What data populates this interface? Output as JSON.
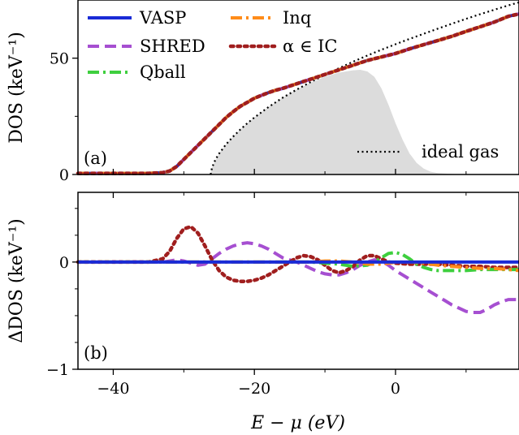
{
  "colors": {
    "VASP": "#1a2bd6",
    "SHRED": "#a64fd1",
    "Qball": "#3ecf3e",
    "Inq": "#ff8c1a",
    "alphaIC": "#a01e1e",
    "ideal": "#000000",
    "shade": "#dcdcdc"
  },
  "chart_data": [
    {
      "type": "line",
      "panel_tag": "(a)",
      "ylabel": "DOS (keV⁻¹)",
      "xlim": [
        -45,
        17.5
      ],
      "ylim": [
        0,
        75
      ],
      "xticks": [
        -40,
        -20,
        0
      ],
      "yticks": [
        0,
        50
      ],
      "ytick_labels": [
        "0",
        "50"
      ],
      "legend": {
        "placement": "top-left",
        "entries": [
          {
            "key": "VASP",
            "label": "VASP",
            "style": "solid"
          },
          {
            "key": "SHRED",
            "label": "SHRED",
            "style": "dashed"
          },
          {
            "key": "Qball",
            "label": "Qball",
            "style": "dashdot"
          },
          {
            "key": "Inq",
            "label": "Inq",
            "style": "dashdot"
          },
          {
            "key": "alphaIC",
            "label": "α ∈ IC",
            "style": "dotted"
          }
        ]
      },
      "ideal_legend": {
        "label": "ideal gas",
        "placement": "bottom-right"
      },
      "series_x": [
        -45,
        -40,
        -35,
        -33,
        -32,
        -31,
        -30,
        -29,
        -28,
        -27,
        -26,
        -25,
        -24,
        -23,
        -22,
        -21,
        -20,
        -19,
        -18,
        -17,
        -16,
        -15,
        -14,
        -13,
        -12,
        -11,
        -10,
        -8,
        -6,
        -4,
        -2,
        0,
        2,
        4,
        6,
        8,
        10,
        12,
        14,
        16,
        17.5
      ],
      "main_y": [
        0.5,
        0.5,
        0.5,
        0.8,
        1.5,
        3.5,
        6.5,
        9.5,
        12.5,
        15.5,
        18.5,
        21.5,
        24.5,
        27,
        29.3,
        31,
        32.8,
        34,
        35.2,
        36.2,
        37,
        38,
        39,
        40,
        41,
        42,
        43,
        45,
        47,
        49,
        50.5,
        52,
        54,
        55.8,
        57.6,
        59.4,
        61.5,
        63.5,
        65.5,
        68,
        69
      ],
      "ideal_x": [
        -26.2,
        -26,
        -25.5,
        -25,
        -24,
        -23,
        -22,
        -21,
        -20,
        -18,
        -16,
        -14,
        -12,
        -10,
        -8,
        -6,
        -4,
        -2,
        0,
        2,
        4,
        6,
        8,
        10,
        12,
        14,
        16,
        17.5
      ],
      "ideal_y": [
        0,
        3,
        6.5,
        9,
        13,
        16.3,
        19.3,
        22,
        24.5,
        29,
        33,
        36.5,
        39.8,
        42.8,
        45.7,
        48.5,
        51.1,
        53.6,
        56,
        58.3,
        60.5,
        62.7,
        64.8,
        66.9,
        68.9,
        70.8,
        72.7,
        74
      ],
      "shade_x": [
        -26.2,
        -26,
        -25,
        -24,
        -23,
        -22,
        -21,
        -20,
        -18,
        -16,
        -14,
        -12,
        -10,
        -8,
        -6,
        -5,
        -4,
        -3,
        -2,
        -1,
        0,
        1,
        2,
        3,
        4,
        5,
        6,
        8,
        10
      ],
      "shade_y": [
        0,
        3,
        9,
        13,
        16.3,
        19.3,
        22,
        24.5,
        29,
        33,
        36.5,
        39.5,
        42,
        43.8,
        44.8,
        45,
        44.3,
        42,
        37,
        30,
        22,
        15,
        9,
        5,
        2.5,
        1.2,
        0.6,
        0.2,
        0
      ]
    },
    {
      "type": "line",
      "panel_tag": "(b)",
      "ylabel": "ΔDOS (keV⁻¹)",
      "xlabel": "E − μ (eV)",
      "xlim": [
        -45,
        17.5
      ],
      "ylim": [
        -1,
        0.65
      ],
      "xticks": [
        -40,
        -20,
        0
      ],
      "xtick_labels": [
        "−40",
        "−20",
        "0"
      ],
      "yticks": [
        -1,
        0
      ],
      "ytick_labels": [
        "−1",
        "0"
      ],
      "series": [
        {
          "key": "SHRED",
          "style": "dashed",
          "x": [
            -45,
            -36,
            -33,
            -32,
            -31,
            -30,
            -29,
            -28,
            -27,
            -26,
            -25,
            -24,
            -23,
            -22,
            -21,
            -20,
            -19,
            -18,
            -17,
            -16,
            -15,
            -14,
            -13,
            -12,
            -11,
            -10,
            -9,
            -8,
            -7,
            -6,
            -5,
            -4,
            -3,
            -2,
            -1,
            0,
            1,
            2,
            3,
            4,
            5,
            6,
            7,
            8,
            9,
            10,
            11,
            12,
            13,
            14,
            15,
            16,
            17.5
          ],
          "y": [
            0,
            0,
            0,
            0.01,
            0.02,
            0.01,
            -0.01,
            -0.03,
            -0.02,
            0.03,
            0.08,
            0.12,
            0.15,
            0.17,
            0.18,
            0.17,
            0.15,
            0.12,
            0.08,
            0.04,
            0.02,
            0,
            -0.03,
            -0.06,
            -0.09,
            -0.11,
            -0.12,
            -0.12,
            -0.1,
            -0.07,
            -0.03,
            0,
            0.02,
            0.01,
            -0.03,
            -0.08,
            -0.12,
            -0.16,
            -0.2,
            -0.24,
            -0.28,
            -0.32,
            -0.36,
            -0.4,
            -0.43,
            -0.46,
            -0.47,
            -0.47,
            -0.44,
            -0.4,
            -0.37,
            -0.35,
            -0.35
          ]
        },
        {
          "key": "alphaIC",
          "style": "dotted",
          "x": [
            -45,
            -35,
            -33,
            -32,
            -31,
            -30,
            -29,
            -28,
            -27,
            -26,
            -25,
            -24,
            -23,
            -22,
            -21,
            -20,
            -19,
            -18,
            -17,
            -16,
            -15,
            -14,
            -13,
            -12,
            -11,
            -10,
            -9,
            -8,
            -7,
            -6,
            -5,
            -4,
            -3,
            -2,
            -1,
            0,
            2,
            4,
            6,
            8,
            10,
            12,
            14,
            16,
            17.5
          ],
          "y": [
            0,
            0,
            0.03,
            0.1,
            0.22,
            0.31,
            0.33,
            0.27,
            0.15,
            0.02,
            -0.08,
            -0.14,
            -0.17,
            -0.18,
            -0.18,
            -0.17,
            -0.15,
            -0.12,
            -0.08,
            -0.04,
            0,
            0.04,
            0.06,
            0.05,
            0.02,
            -0.03,
            -0.08,
            -0.1,
            -0.08,
            -0.04,
            0.02,
            0.06,
            0.06,
            0.03,
            0,
            -0.01,
            -0.02,
            -0.02,
            -0.02,
            -0.03,
            -0.04,
            -0.04,
            -0.05,
            -0.05,
            -0.05
          ]
        },
        {
          "key": "Qball",
          "style": "dashdot",
          "x": [
            -45,
            -30,
            -25,
            -20,
            -15,
            -12,
            -10,
            -8,
            -6,
            -4,
            -3,
            -2,
            -1,
            0,
            1,
            2,
            3,
            4,
            5,
            6,
            8,
            10,
            12,
            14,
            16,
            17.5
          ],
          "y": [
            0,
            0,
            0,
            0,
            0,
            0,
            -0.01,
            -0.02,
            -0.04,
            -0.03,
            0,
            0.04,
            0.08,
            0.09,
            0.07,
            0.03,
            -0.02,
            -0.05,
            -0.07,
            -0.08,
            -0.08,
            -0.08,
            -0.07,
            -0.07,
            -0.07,
            -0.07
          ]
        },
        {
          "key": "Inq",
          "style": "dashdot",
          "x": [
            -45,
            -30,
            -20,
            -15,
            -12,
            -10,
            -8,
            -6,
            -4,
            -2,
            0,
            2,
            4,
            6,
            8,
            10,
            12,
            14,
            16,
            17.5
          ],
          "y": [
            0,
            0,
            0,
            0,
            0,
            0.01,
            0.01,
            0,
            -0.02,
            -0.02,
            0,
            0,
            -0.01,
            -0.03,
            -0.04,
            -0.05,
            -0.06,
            -0.06,
            -0.07,
            -0.08
          ]
        },
        {
          "key": "VASP",
          "style": "solid",
          "x": [
            -45,
            17.5
          ],
          "y": [
            0,
            0
          ]
        }
      ]
    }
  ]
}
